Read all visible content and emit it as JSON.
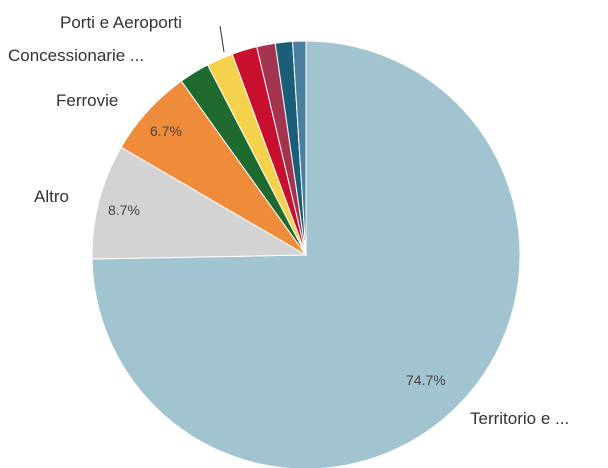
{
  "chart_data": {
    "type": "pie",
    "slices": [
      {
        "label": "Territorio e ...",
        "value": 74.7,
        "pct_label": "74.7%",
        "color": "#a2c3d0"
      },
      {
        "label": "Altro",
        "value": 8.7,
        "pct_label": "8.7%",
        "color": "#d3d3d3"
      },
      {
        "label": "Ferrovie",
        "value": 6.7,
        "pct_label": "6.7%",
        "color": "#ef8c3b"
      },
      {
        "label": "Concessionarie ...",
        "value": 2.3,
        "pct_label": "",
        "color": "#1f6b2f"
      },
      {
        "label": "",
        "value": 2.0,
        "pct_label": "",
        "color": "#f5d24b"
      },
      {
        "label": "",
        "value": 1.9,
        "pct_label": "",
        "color": "#c8102e"
      },
      {
        "label": "",
        "value": 1.4,
        "pct_label": "",
        "color": "#a3344f"
      },
      {
        "label": "Porti e Aeroporti",
        "value": 1.3,
        "pct_label": "",
        "color": "#1b5e7a"
      },
      {
        "label": "",
        "value": 1.0,
        "pct_label": "",
        "color": "#4a7fa0"
      }
    ]
  }
}
